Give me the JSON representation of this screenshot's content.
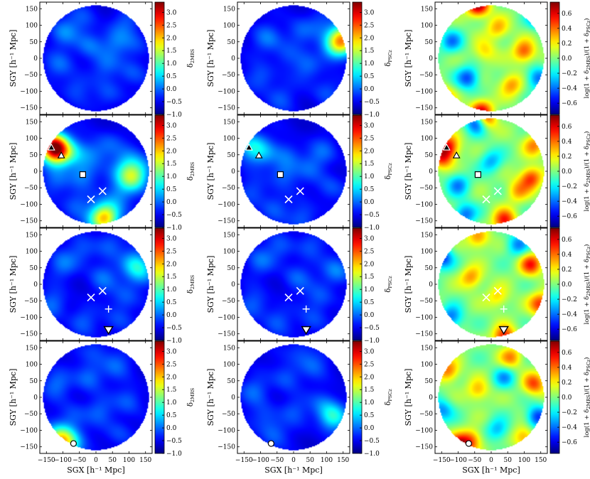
{
  "chart_data": {
    "type": "heatmap",
    "layout": {
      "rows": 4,
      "columns": 3
    },
    "xlabel": "SGX [h⁻¹ Mpc]",
    "ylabel": "SGY [h⁻¹ Mpc]",
    "xlim": [
      -170,
      170
    ],
    "ylim": [
      -170,
      170
    ],
    "xticks": [
      -150,
      -100,
      -50,
      0,
      50,
      100,
      150
    ],
    "yticks": [
      -150,
      -100,
      -50,
      0,
      50,
      100,
      150
    ],
    "field_radius": 160,
    "columns": [
      {
        "quantity": "density contrast, 2MRS",
        "colorbar_label": "δ₂ₘᵣₛ",
        "label_main": "δ",
        "label_sub": "2MRS",
        "clim": [
          -1.0,
          3.4
        ],
        "ticks": [
          -1.0,
          -0.5,
          0.0,
          0.5,
          1.0,
          1.5,
          2.0,
          2.5,
          3.0
        ],
        "tick_labels": [
          "−1.0",
          "−0.5",
          "0.0",
          "0.5",
          "1.0",
          "1.5",
          "2.0",
          "2.5",
          "3.0"
        ]
      },
      {
        "quantity": "density contrast, PSCz",
        "colorbar_label": "δ PSCz",
        "label_main": "δ",
        "label_sub": "PSCz",
        "clim": [
          -1.0,
          3.4
        ],
        "ticks": [
          -1.0,
          -0.5,
          0.0,
          0.5,
          1.0,
          1.5,
          2.0,
          2.5,
          3.0
        ],
        "tick_labels": [
          "−1.0",
          "−0.5",
          "0.0",
          "0.5",
          "1.0",
          "1.5",
          "2.0",
          "2.5",
          "3.0"
        ]
      },
      {
        "quantity": "log ratio",
        "colorbar_label": "log(1 + δ 2MRS)/(1 + δ PSCz)",
        "label_main": "log(1 + δ",
        "label_sub": "2MRS",
        "label_mid": ")/(1 + δ",
        "label_sub2": "PSCz",
        "label_end": ")",
        "clim": [
          -0.75,
          0.75
        ],
        "ticks": [
          -0.6,
          -0.4,
          -0.2,
          0.0,
          0.2,
          0.4,
          0.6
        ],
        "tick_labels": [
          "−0.6",
          "−0.4",
          "−0.2",
          "0.0",
          "0.2",
          "0.4",
          "0.6"
        ]
      }
    ],
    "rows": [
      {
        "name": "slice 1",
        "markers": []
      },
      {
        "name": "slice 2",
        "markers": [
          {
            "shape": "triangle-up",
            "fill": "black",
            "x": -135,
            "y": 72
          },
          {
            "shape": "triangle-up",
            "fill": "white",
            "x": -105,
            "y": 48
          },
          {
            "shape": "square",
            "fill": "white",
            "x": -40,
            "y": -10
          },
          {
            "shape": "x",
            "x": 20,
            "y": -60
          },
          {
            "shape": "x",
            "x": -15,
            "y": -85
          }
        ]
      },
      {
        "name": "slice 3",
        "markers": [
          {
            "shape": "x",
            "x": 20,
            "y": -20
          },
          {
            "shape": "x",
            "x": -15,
            "y": -40
          },
          {
            "shape": "plus",
            "x": 38,
            "y": -75
          },
          {
            "shape": "triangle-down",
            "fill": "white",
            "x": 38,
            "y": -138
          }
        ]
      },
      {
        "name": "slice 4",
        "markers": [
          {
            "shape": "circle",
            "fill": "white",
            "x": -68,
            "y": -140
          }
        ]
      }
    ],
    "blobs": [
      [
        [
          {
            "x": -95,
            "y": 80,
            "a": 0.6
          },
          {
            "x": -20,
            "y": 40,
            "a": 0.6
          },
          {
            "x": 60,
            "y": 50,
            "a": 0.5
          },
          {
            "x": -110,
            "y": -20,
            "a": 0.5
          },
          {
            "x": 30,
            "y": -20,
            "a": 0.45
          },
          {
            "x": 110,
            "y": -45,
            "a": 0.45
          },
          {
            "x": -60,
            "y": -90,
            "a": 0.45
          },
          {
            "x": 40,
            "y": -110,
            "a": 0.4
          },
          {
            "x": 90,
            "y": 110,
            "a": 0.4
          },
          {
            "x": -40,
            "y": 120,
            "a": 0.35
          },
          {
            "x": 120,
            "y": 40,
            "a": 0.35
          }
        ],
        [
          {
            "x": 150,
            "y": 60,
            "a": 2.4
          },
          {
            "x": 125,
            "y": 30,
            "a": 1.0
          },
          {
            "x": -80,
            "y": 60,
            "a": 0.55
          },
          {
            "x": 20,
            "y": 80,
            "a": 0.5
          },
          {
            "x": -100,
            "y": -60,
            "a": 0.5
          },
          {
            "x": 40,
            "y": -30,
            "a": 0.45
          },
          {
            "x": 100,
            "y": -100,
            "a": 0.45
          },
          {
            "x": -40,
            "y": -120,
            "a": 0.4
          },
          {
            "x": -20,
            "y": 10,
            "a": 0.4
          },
          {
            "x": 80,
            "y": 110,
            "a": 0.35
          }
        ],
        [
          {
            "x": -40,
            "y": 160,
            "a": 0.7
          },
          {
            "x": 150,
            "y": 130,
            "a": -0.7
          },
          {
            "x": 100,
            "y": 20,
            "a": 0.45
          },
          {
            "x": -30,
            "y": -160,
            "a": 0.6
          },
          {
            "x": -150,
            "y": -120,
            "a": 0.5
          },
          {
            "x": -70,
            "y": -60,
            "a": -0.45
          },
          {
            "x": 60,
            "y": -80,
            "a": 0.35
          },
          {
            "x": -120,
            "y": 50,
            "a": -0.35
          },
          {
            "x": 20,
            "y": 90,
            "a": 0.3
          },
          {
            "x": 140,
            "y": -60,
            "a": -0.4
          },
          {
            "x": -20,
            "y": 20,
            "a": 0.25
          }
        ]
      ],
      [
        [
          {
            "x": -130,
            "y": 75,
            "a": 3.2
          },
          {
            "x": -110,
            "y": 55,
            "a": 1.4
          },
          {
            "x": -65,
            "y": 55,
            "a": 0.6
          },
          {
            "x": -10,
            "y": 55,
            "a": 0.5
          },
          {
            "x": 100,
            "y": 30,
            "a": 0.55
          },
          {
            "x": 140,
            "y": 10,
            "a": 0.45
          },
          {
            "x": 80,
            "y": -5,
            "a": 0.4
          },
          {
            "x": -40,
            "y": -10,
            "a": 0.7
          },
          {
            "x": 110,
            "y": -20,
            "a": 1.6
          },
          {
            "x": 70,
            "y": -75,
            "a": 0.55
          },
          {
            "x": -60,
            "y": -100,
            "a": 0.5
          },
          {
            "x": 20,
            "y": -145,
            "a": 2.0
          },
          {
            "x": 40,
            "y": -130,
            "a": 0.8
          },
          {
            "x": -120,
            "y": -30,
            "a": 0.45
          },
          {
            "x": 40,
            "y": 80,
            "a": 0.4
          }
        ],
        [
          {
            "x": -130,
            "y": 75,
            "a": 1.0
          },
          {
            "x": -90,
            "y": 55,
            "a": 0.6
          },
          {
            "x": -20,
            "y": 50,
            "a": 0.5
          },
          {
            "x": 90,
            "y": 60,
            "a": 0.45
          },
          {
            "x": -30,
            "y": -10,
            "a": 0.55
          },
          {
            "x": 110,
            "y": -50,
            "a": 0.45
          },
          {
            "x": -60,
            "y": -110,
            "a": 0.45
          },
          {
            "x": 30,
            "y": -140,
            "a": 0.5
          },
          {
            "x": 50,
            "y": 10,
            "a": 0.4
          },
          {
            "x": -120,
            "y": -60,
            "a": 0.4
          }
        ],
        [
          {
            "x": -40,
            "y": 150,
            "a": -0.7
          },
          {
            "x": -20,
            "y": 160,
            "a": 0.7
          },
          {
            "x": -130,
            "y": 75,
            "a": 0.55
          },
          {
            "x": -150,
            "y": 40,
            "a": 0.45
          },
          {
            "x": 120,
            "y": -20,
            "a": 0.5
          },
          {
            "x": 130,
            "y": 80,
            "a": 0.35
          },
          {
            "x": 40,
            "y": -150,
            "a": 0.55
          },
          {
            "x": -80,
            "y": -130,
            "a": -0.4
          },
          {
            "x": 0,
            "y": 30,
            "a": -0.3
          },
          {
            "x": 80,
            "y": -60,
            "a": 0.3
          },
          {
            "x": -100,
            "y": -40,
            "a": -0.35
          }
        ]
      ],
      [
        [
          {
            "x": -100,
            "y": 60,
            "a": 0.55
          },
          {
            "x": 20,
            "y": 20,
            "a": 0.55
          },
          {
            "x": 120,
            "y": 60,
            "a": 1.0
          },
          {
            "x": 140,
            "y": 30,
            "a": 0.6
          },
          {
            "x": -130,
            "y": -60,
            "a": 0.55
          },
          {
            "x": 90,
            "y": -40,
            "a": 0.45
          },
          {
            "x": 70,
            "y": -110,
            "a": 0.4
          },
          {
            "x": -40,
            "y": -110,
            "a": 0.45
          },
          {
            "x": 40,
            "y": 120,
            "a": 0.5
          },
          {
            "x": -40,
            "y": 100,
            "a": 0.4
          }
        ],
        [
          {
            "x": -100,
            "y": 70,
            "a": 0.5
          },
          {
            "x": 10,
            "y": 20,
            "a": 0.5
          },
          {
            "x": 130,
            "y": 40,
            "a": 0.7
          },
          {
            "x": -120,
            "y": -60,
            "a": 0.5
          },
          {
            "x": 80,
            "y": -40,
            "a": 0.45
          },
          {
            "x": 60,
            "y": -110,
            "a": 0.4
          },
          {
            "x": -50,
            "y": -110,
            "a": 0.45
          },
          {
            "x": 50,
            "y": 120,
            "a": 0.45
          },
          {
            "x": -40,
            "y": 110,
            "a": 0.4
          }
        ],
        [
          {
            "x": 120,
            "y": 60,
            "a": 0.5
          },
          {
            "x": -150,
            "y": 80,
            "a": -0.5
          },
          {
            "x": 150,
            "y": -60,
            "a": 0.5
          },
          {
            "x": 40,
            "y": -160,
            "a": 0.55
          },
          {
            "x": -60,
            "y": 20,
            "a": 0.35
          },
          {
            "x": -120,
            "y": -100,
            "a": -0.4
          },
          {
            "x": 80,
            "y": 120,
            "a": -0.35
          },
          {
            "x": 20,
            "y": -40,
            "a": 0.25
          },
          {
            "x": -40,
            "y": 140,
            "a": 0.35
          }
        ]
      ],
      [
        [
          {
            "x": -110,
            "y": -130,
            "a": 2.2
          },
          {
            "x": -80,
            "y": -140,
            "a": 0.9
          },
          {
            "x": -120,
            "y": 40,
            "a": 0.55
          },
          {
            "x": -20,
            "y": 60,
            "a": 0.6
          },
          {
            "x": 60,
            "y": 100,
            "a": 0.5
          },
          {
            "x": 100,
            "y": -10,
            "a": 0.5
          },
          {
            "x": 10,
            "y": -40,
            "a": 0.45
          },
          {
            "x": 70,
            "y": -110,
            "a": 0.4
          },
          {
            "x": -70,
            "y": -60,
            "a": 0.45
          },
          {
            "x": 0,
            "y": 140,
            "a": 0.35
          }
        ],
        [
          {
            "x": 120,
            "y": -60,
            "a": 1.3
          },
          {
            "x": -120,
            "y": 20,
            "a": 0.5
          },
          {
            "x": -20,
            "y": 60,
            "a": 0.5
          },
          {
            "x": 60,
            "y": 100,
            "a": 0.45
          },
          {
            "x": 90,
            "y": -20,
            "a": 0.45
          },
          {
            "x": -60,
            "y": -110,
            "a": 0.45
          },
          {
            "x": 0,
            "y": -40,
            "a": 0.4
          },
          {
            "x": -90,
            "y": -60,
            "a": 0.4
          },
          {
            "x": 20,
            "y": 140,
            "a": 0.35
          }
        ],
        [
          {
            "x": -100,
            "y": -150,
            "a": 0.7
          },
          {
            "x": -60,
            "y": -130,
            "a": 0.4
          },
          {
            "x": 130,
            "y": 40,
            "a": 0.45
          },
          {
            "x": -130,
            "y": 80,
            "a": 0.4
          },
          {
            "x": 60,
            "y": 120,
            "a": 0.35
          },
          {
            "x": 140,
            "y": -60,
            "a": -0.5
          },
          {
            "x": 20,
            "y": -100,
            "a": -0.3
          },
          {
            "x": -40,
            "y": 20,
            "a": 0.3
          },
          {
            "x": 100,
            "y": -120,
            "a": 0.35
          },
          {
            "x": -150,
            "y": -40,
            "a": -0.35
          },
          {
            "x": 40,
            "y": 60,
            "a": -0.3
          }
        ]
      ]
    ]
  }
}
